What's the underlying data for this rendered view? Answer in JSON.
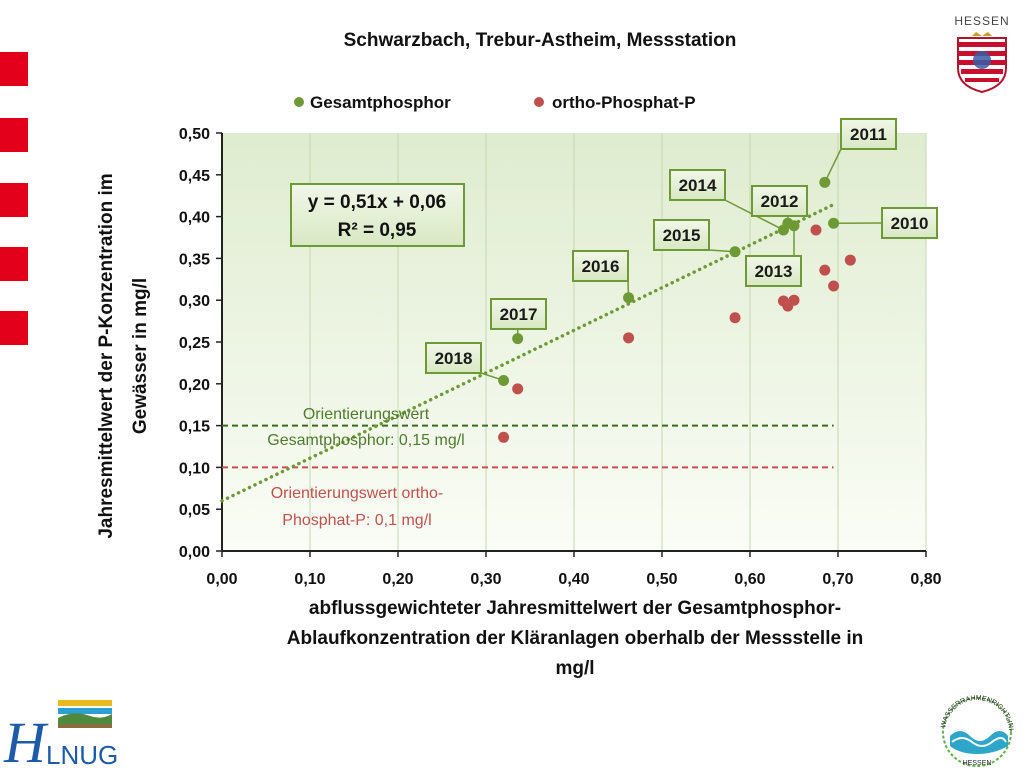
{
  "chart_data": {
    "type": "scatter",
    "title": "Schwarzbach, Trebur-Astheim, Messstation",
    "xlabel_lines": [
      "abflussgewichteter Jahresmittelwert der Gesamtphosphor-",
      "Ablaufkonzentration der Kläranlagen oberhalb der Messstelle  in",
      "mg/l"
    ],
    "ylabel_lines": [
      "Jahresmittelwert der P-Konzentration im",
      "Gewässer in mg/l"
    ],
    "xlim": [
      0,
      0.8
    ],
    "ylim": [
      0,
      0.5
    ],
    "xticks": [
      "0,00",
      "0,10",
      "0,20",
      "0,30",
      "0,40",
      "0,50",
      "0,60",
      "0,70",
      "0,80"
    ],
    "yticks": [
      "0,00",
      "0,05",
      "0,10",
      "0,15",
      "0,20",
      "0,25",
      "0,30",
      "0,35",
      "0,40",
      "0,45",
      "0,50"
    ],
    "grid": "vertical",
    "legend": "top",
    "series": [
      {
        "name": "Gesamtphosphor",
        "color": "#6e9a36",
        "points": [
          {
            "x": 0.32,
            "y": 0.204,
            "label": "2018"
          },
          {
            "x": 0.336,
            "y": 0.254,
            "label": "2017"
          },
          {
            "x": 0.462,
            "y": 0.303,
            "label": "2016"
          },
          {
            "x": 0.583,
            "y": 0.358,
            "label": "2015"
          },
          {
            "x": 0.638,
            "y": 0.384,
            "label": "2014"
          },
          {
            "x": 0.643,
            "y": 0.392,
            "label": "2012"
          },
          {
            "x": 0.65,
            "y": 0.389,
            "label": "2013"
          },
          {
            "x": 0.685,
            "y": 0.441,
            "label": "2011"
          },
          {
            "x": 0.695,
            "y": 0.392,
            "label": "2010"
          }
        ]
      },
      {
        "name": "ortho-Phosphat-P",
        "color": "#c0504d",
        "points": [
          {
            "x": 0.32,
            "y": 0.136
          },
          {
            "x": 0.336,
            "y": 0.194
          },
          {
            "x": 0.462,
            "y": 0.255
          },
          {
            "x": 0.583,
            "y": 0.279
          },
          {
            "x": 0.638,
            "y": 0.299
          },
          {
            "x": 0.643,
            "y": 0.293
          },
          {
            "x": 0.65,
            "y": 0.3
          },
          {
            "x": 0.675,
            "y": 0.384
          },
          {
            "x": 0.685,
            "y": 0.336
          },
          {
            "x": 0.695,
            "y": 0.317
          },
          {
            "x": 0.714,
            "y": 0.348
          }
        ]
      }
    ],
    "trendline": {
      "slope": 0.51,
      "intercept": 0.06,
      "x_range": [
        0,
        0.695
      ],
      "color": "#6e9a36"
    },
    "equation_lines": [
      "y = 0,51x + 0,06",
      "R² = 0,95"
    ],
    "reference_lines": [
      {
        "y": 0.15,
        "x_end": 0.695,
        "color": "#3d6b1f",
        "label_lines": [
          "Orientierungswert",
          "Gesamtphosphor: 0,15 mg/l"
        ],
        "label_color": "#4f7a2c"
      },
      {
        "y": 0.1,
        "x_end": 0.695,
        "color": "#d04a4a",
        "label_lines": [
          "Orientierungswert ortho-",
          "Phosphat-P: 0,1 mg/l"
        ],
        "label_color": "#c0504d"
      }
    ]
  },
  "logos": {
    "hessen": "HESSEN",
    "hlnug_h": "H",
    "hlnug_rest": "LNUG",
    "wrrl_ring": "WASSERRAHMENRICHTLINIE",
    "wrrl_bottom": "HESSEN"
  },
  "colors": {
    "accent_red": "#e3001b",
    "plot_bg_top": "#dfeccf",
    "plot_bg_bottom": "#fafdf6"
  }
}
